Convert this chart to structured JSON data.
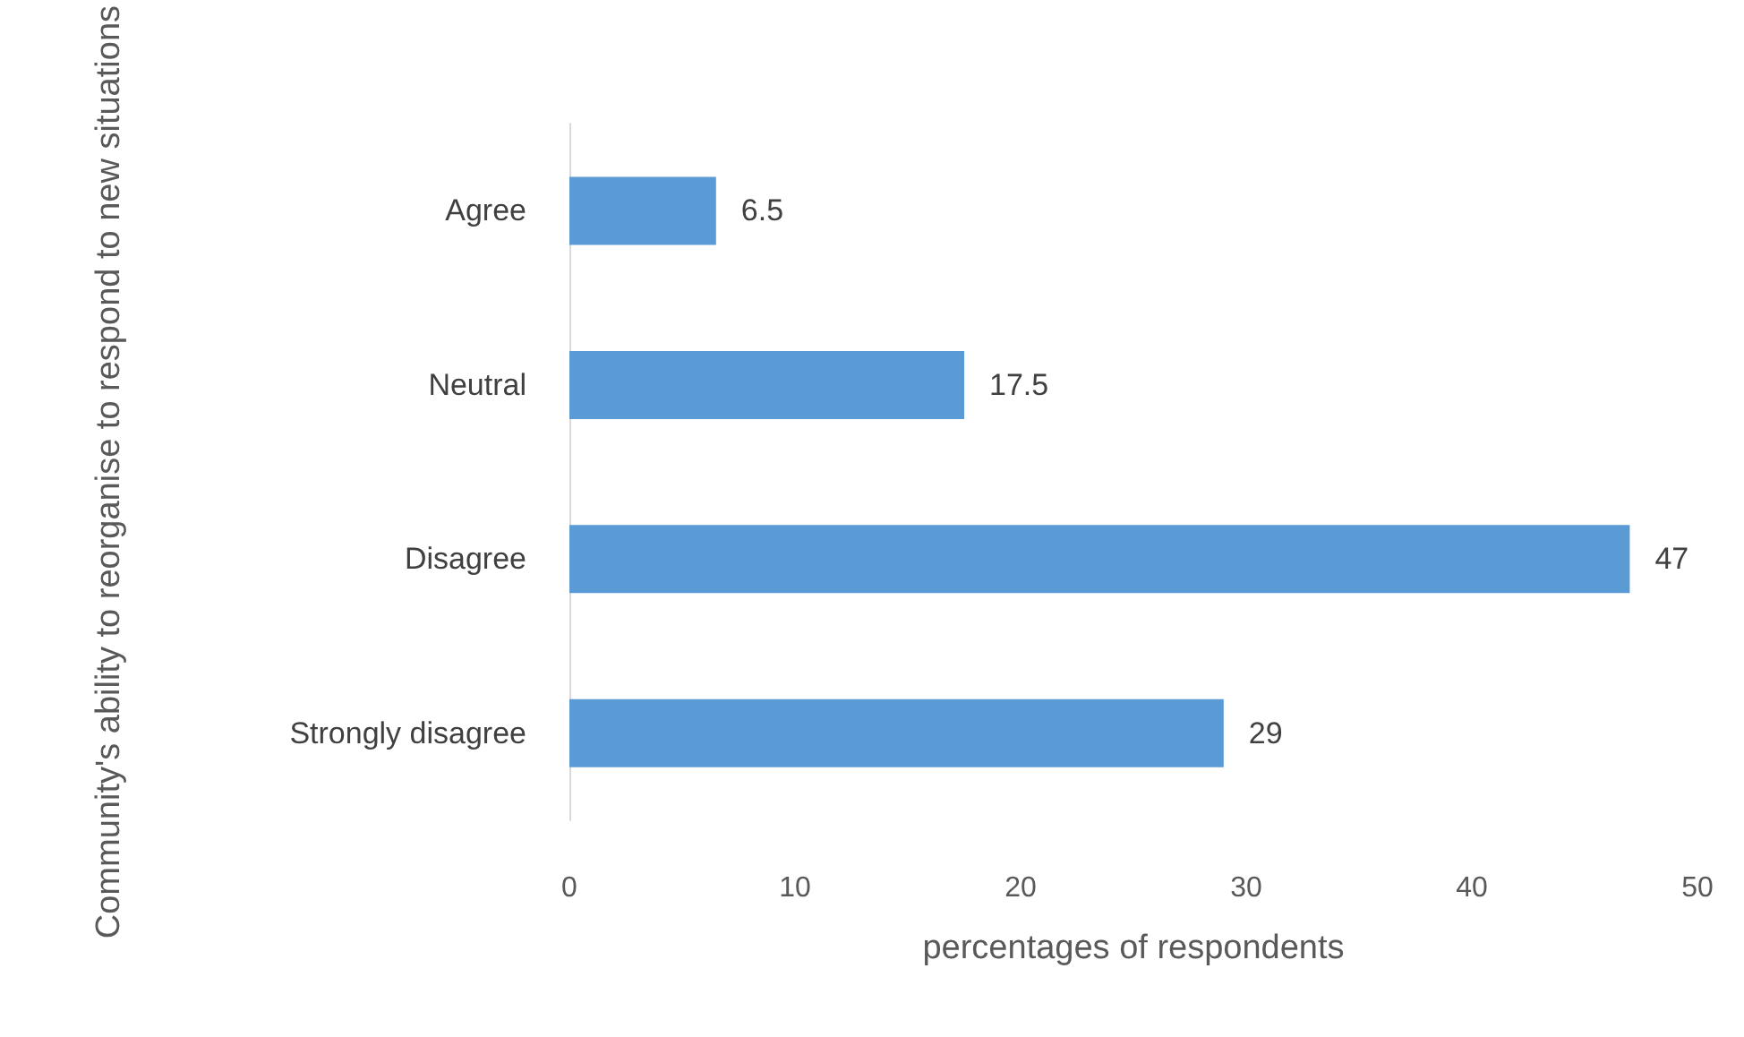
{
  "chart_data": {
    "type": "bar",
    "orientation": "horizontal",
    "xlabel": "percentages of respondents",
    "ylabel": "Community's ability to reorganise to respond to new situations",
    "categories": [
      "Agree",
      "Neutral",
      "Disagree",
      "Strongly disagree"
    ],
    "values": [
      6.5,
      17.5,
      47,
      29
    ],
    "color": "#5b9bd5",
    "xlim": [
      0,
      50
    ],
    "xticks": [
      0,
      10,
      20,
      30,
      40,
      50
    ],
    "grid": false,
    "data_labels": true
  }
}
